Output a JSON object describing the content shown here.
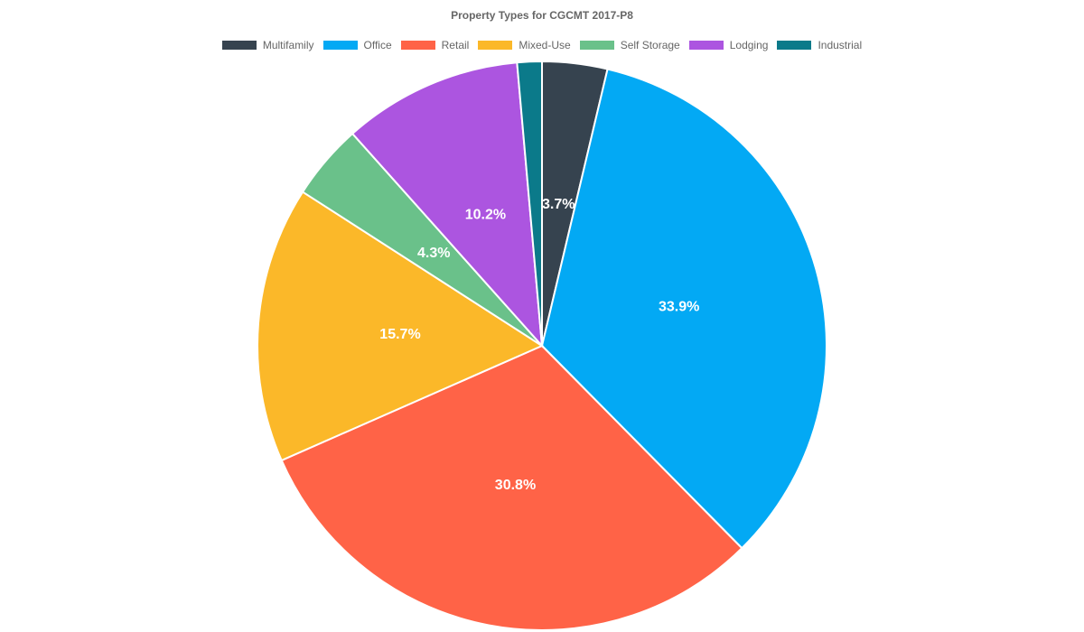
{
  "chart_data": {
    "type": "pie",
    "title": "Property Types for CGCMT 2017-P8",
    "legend_position": "top",
    "slices": [
      {
        "name": "Multifamily",
        "value": 3.7,
        "label": "3.7%",
        "color": "#36434f"
      },
      {
        "name": "Office",
        "value": 33.9,
        "label": "33.9%",
        "color": "#03a9f4"
      },
      {
        "name": "Retail",
        "value": 30.8,
        "label": "30.8%",
        "color": "#ff6347"
      },
      {
        "name": "Mixed-Use",
        "value": 15.7,
        "label": "15.7%",
        "color": "#fbb829"
      },
      {
        "name": "Self Storage",
        "value": 4.3,
        "label": "4.3%",
        "color": "#6ac18a"
      },
      {
        "name": "Lodging",
        "value": 10.2,
        "label": "10.2%",
        "color": "#ac55e0"
      },
      {
        "name": "Industrial",
        "value": 1.4,
        "label": "",
        "color": "#0b7a8a"
      }
    ]
  }
}
